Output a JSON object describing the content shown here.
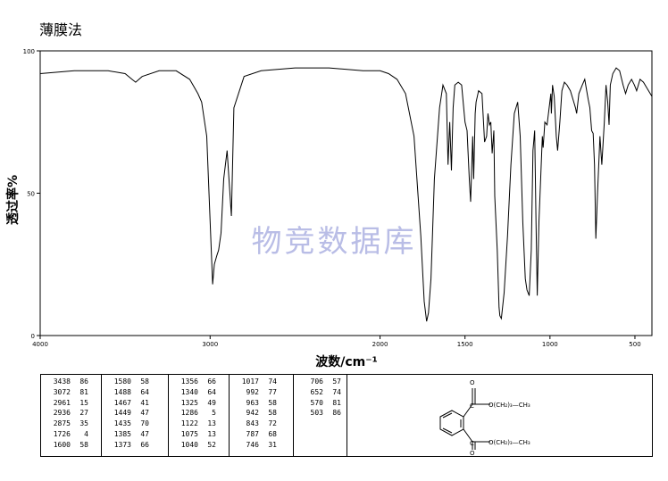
{
  "title": "薄膜法",
  "watermark": "物竞数据库",
  "chart_data": {
    "type": "line",
    "xlabel": "波数/cm⁻¹",
    "ylabel": "透过率%",
    "xlim": [
      4000,
      400
    ],
    "ylim": [
      0,
      100
    ],
    "x_ticks": [
      4000,
      3000,
      2000,
      1500,
      1000,
      500
    ],
    "y_ticks": [
      100,
      50,
      0
    ],
    "x": [
      4000,
      3800,
      3600,
      3500,
      3460,
      3438,
      3400,
      3300,
      3200,
      3120,
      3072,
      3050,
      3020,
      3000,
      2985,
      2975,
      2961,
      2950,
      2936,
      2920,
      2900,
      2875,
      2860,
      2800,
      2700,
      2500,
      2300,
      2100,
      2000,
      1950,
      1900,
      1850,
      1800,
      1760,
      1740,
      1726,
      1715,
      1700,
      1680,
      1650,
      1630,
      1610,
      1600,
      1590,
      1580,
      1570,
      1560,
      1540,
      1520,
      1500,
      1488,
      1475,
      1467,
      1455,
      1449,
      1440,
      1435,
      1420,
      1400,
      1385,
      1373,
      1365,
      1356,
      1348,
      1340,
      1330,
      1325,
      1310,
      1300,
      1295,
      1286,
      1270,
      1250,
      1230,
      1210,
      1190,
      1175,
      1160,
      1145,
      1135,
      1122,
      1110,
      1100,
      1090,
      1082,
      1075,
      1065,
      1055,
      1045,
      1040,
      1030,
      1017,
      1005,
      995,
      992,
      985,
      975,
      963,
      955,
      942,
      930,
      915,
      900,
      880,
      860,
      850,
      843,
      830,
      810,
      795,
      787,
      775,
      765,
      755,
      746,
      738,
      730,
      720,
      706,
      695,
      680,
      670,
      660,
      652,
      645,
      630,
      610,
      590,
      570,
      555,
      540,
      520,
      503,
      490,
      470,
      450,
      430,
      400
    ],
    "series": [
      {
        "values": [
          92,
          93,
          93,
          92,
          90,
          89,
          91,
          93,
          93,
          90,
          85,
          82,
          70,
          40,
          18,
          25,
          28,
          30,
          36,
          55,
          65,
          42,
          80,
          91,
          93,
          94,
          94,
          93,
          93,
          92,
          90,
          85,
          70,
          35,
          12,
          5,
          8,
          20,
          55,
          80,
          88,
          85,
          60,
          75,
          58,
          80,
          88,
          89,
          88,
          75,
          72,
          55,
          47,
          70,
          55,
          78,
          82,
          86,
          85,
          68,
          70,
          78,
          74,
          75,
          64,
          72,
          49,
          30,
          10,
          7,
          6,
          15,
          35,
          60,
          78,
          82,
          70,
          40,
          20,
          16,
          14,
          30,
          65,
          72,
          40,
          14,
          40,
          55,
          70,
          66,
          75,
          74,
          80,
          85,
          78,
          88,
          84,
          70,
          65,
          75,
          86,
          89,
          88,
          86,
          82,
          80,
          78,
          85,
          88,
          90,
          87,
          83,
          80,
          72,
          71,
          60,
          34,
          50,
          70,
          60,
          75,
          88,
          82,
          74,
          88,
          92,
          94,
          93,
          88,
          85,
          88,
          90,
          88,
          86,
          90,
          89,
          87,
          84
        ]
      }
    ],
    "grid": false
  },
  "peak_table": {
    "columns": [
      [
        [
          "3438",
          "86"
        ],
        [
          "3072",
          "81"
        ],
        [
          "2961",
          "15"
        ],
        [
          "2936",
          "27"
        ],
        [
          "2875",
          "35"
        ],
        [
          "1726",
          "4"
        ],
        [
          "1600",
          "58"
        ]
      ],
      [
        [
          "1580",
          "58"
        ],
        [
          "1488",
          "64"
        ],
        [
          "1467",
          "41"
        ],
        [
          "1449",
          "47"
        ],
        [
          "1435",
          "70"
        ],
        [
          "1385",
          "47"
        ],
        [
          "1373",
          "66"
        ]
      ],
      [
        [
          "1356",
          "66"
        ],
        [
          "1340",
          "64"
        ],
        [
          "1325",
          "49"
        ],
        [
          "1286",
          "5"
        ],
        [
          "1122",
          "13"
        ],
        [
          "1075",
          "13"
        ],
        [
          "1040",
          "52"
        ]
      ],
      [
        [
          "1017",
          "74"
        ],
        [
          "992",
          "77"
        ],
        [
          "963",
          "58"
        ],
        [
          "942",
          "58"
        ],
        [
          "843",
          "72"
        ],
        [
          "787",
          "68"
        ],
        [
          "746",
          "31"
        ]
      ],
      [
        [
          "706",
          "57"
        ],
        [
          "652",
          "74"
        ],
        [
          "570",
          "81"
        ],
        [
          "503",
          "86"
        ]
      ]
    ]
  },
  "structure": {
    "chain": "O(CH₂)₃—CH₃",
    "atom_O": "O",
    "atom_C": "C",
    "ch2": "(CH₂)₃",
    "ch3": "CH₃"
  }
}
